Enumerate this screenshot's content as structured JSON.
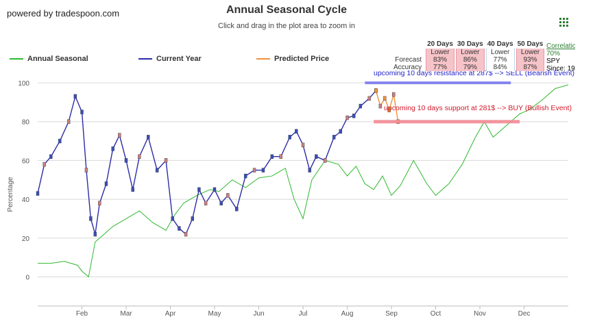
{
  "header": {
    "powered_by": "powered by tradespoon.com",
    "title": "Annual Seasonal Cycle",
    "subtitle": "Click and drag in the plot area to zoom in"
  },
  "legend": [
    {
      "name": "Annual Seasonal",
      "color": "#2eb82e"
    },
    {
      "name": "Current Year",
      "color": "#2b2ba8"
    },
    {
      "name": "Predicted Price",
      "color": "#f0903a"
    }
  ],
  "stats": {
    "columns": [
      "20 Days",
      "30 Days",
      "40 Days",
      "50 Days"
    ],
    "forecast_label": "Forecast",
    "forecast": [
      "Lower",
      "Lower",
      "Lower",
      "Lower"
    ],
    "forecast_pct": [
      "83%",
      "86%",
      "77%",
      "93%"
    ],
    "accuracy_label": "Accuracy",
    "accuracy": [
      "77%",
      "79%",
      "84%",
      "87%"
    ],
    "highlighted": [
      true,
      true,
      false,
      true
    ],
    "correlation_label": "Correlation",
    "correlation_value": "70%",
    "correlation_ticker": "SPY",
    "correlation_since": "Since: 19"
  },
  "annotations": {
    "resistance": "upcoming 10 days resistance at 287$ --> SELL (Bearish Event)",
    "support": "upcoming 10 days support at 281$ --> BUY (Bullish Event)",
    "resistance_color": "#7b7bef",
    "support_color": "#f28b95"
  },
  "chart_data": {
    "type": "line",
    "ylabel": "Percentage",
    "xlabel": "",
    "ylim": [
      -15,
      100
    ],
    "yticks": [
      0,
      20,
      40,
      60,
      80,
      100
    ],
    "month_labels": [
      "Feb",
      "Mar",
      "Apr",
      "May",
      "Jun",
      "Jul",
      "Aug",
      "Sep",
      "Oct",
      "Nov",
      "Dec"
    ],
    "month_positions": [
      1,
      2,
      3,
      4,
      5,
      6,
      7,
      8,
      9,
      10,
      11
    ],
    "xlim": [
      0,
      12
    ],
    "series": [
      {
        "name": "Annual Seasonal",
        "color": "#2eb82e",
        "x": [
          0,
          0.3,
          0.6,
          0.9,
          1.0,
          1.15,
          1.3,
          1.5,
          1.7,
          2.0,
          2.3,
          2.6,
          2.9,
          3.1,
          3.3,
          3.6,
          3.9,
          4.1,
          4.4,
          4.7,
          5.0,
          5.3,
          5.6,
          5.8,
          6.0,
          6.2,
          6.5,
          6.8,
          7.0,
          7.2,
          7.4,
          7.6,
          7.8,
          8.0,
          8.2,
          8.5,
          8.8,
          9.0,
          9.3,
          9.6,
          9.9,
          10.1,
          10.3,
          10.6,
          10.9,
          11.1,
          11.4,
          11.7,
          12.0
        ],
        "y": [
          7,
          7,
          8,
          6,
          3,
          0,
          18,
          22,
          26,
          30,
          34,
          28,
          24,
          32,
          38,
          42,
          45,
          44,
          50,
          46,
          51,
          52,
          56,
          40,
          30,
          50,
          60,
          58,
          52,
          57,
          48,
          45,
          52,
          42,
          47,
          60,
          48,
          42,
          48,
          58,
          72,
          80,
          72,
          78,
          84,
          86,
          91,
          97,
          99
        ]
      },
      {
        "name": "Current Year",
        "color": "#2b2ba8",
        "x": [
          0,
          0.15,
          0.3,
          0.5,
          0.7,
          0.85,
          1.0,
          1.1,
          1.2,
          1.3,
          1.4,
          1.55,
          1.7,
          1.85,
          2.0,
          2.15,
          2.3,
          2.5,
          2.7,
          2.9,
          3.05,
          3.2,
          3.35,
          3.5,
          3.65,
          3.8,
          4.0,
          4.15,
          4.3,
          4.5,
          4.7,
          4.9,
          5.1,
          5.3,
          5.5,
          5.7,
          5.85,
          6.0,
          6.15,
          6.3,
          6.5,
          6.7,
          6.85,
          7.0,
          7.15,
          7.3,
          7.5,
          7.65
        ],
        "y": [
          43,
          58,
          62,
          70,
          80,
          93,
          85,
          55,
          30,
          22,
          38,
          48,
          66,
          73,
          60,
          45,
          62,
          72,
          55,
          60,
          30,
          25,
          22,
          30,
          45,
          38,
          45,
          38,
          42,
          35,
          52,
          55,
          55,
          62,
          62,
          72,
          75,
          68,
          55,
          62,
          60,
          72,
          75,
          82,
          83,
          88,
          92,
          96
        ]
      },
      {
        "name": "Predicted Price",
        "color": "#f0903a",
        "x": [
          7.65,
          7.75,
          7.85,
          7.95,
          8.05,
          8.15
        ],
        "y": [
          96,
          88,
          92,
          86,
          94,
          80
        ]
      }
    ]
  }
}
